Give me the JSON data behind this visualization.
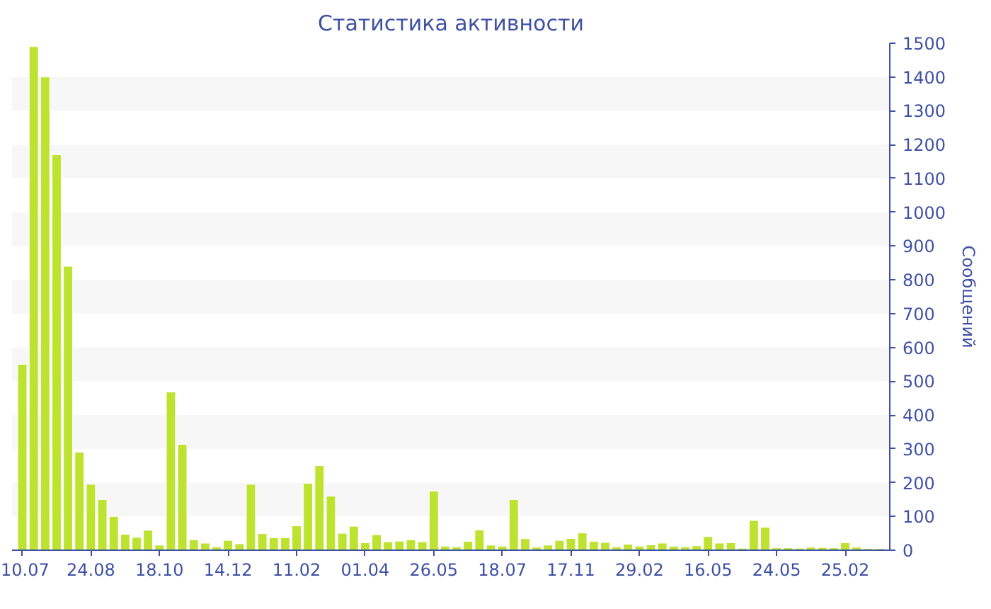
{
  "chart_data": {
    "type": "bar",
    "title": "Статистика активности",
    "ylabel": "Сообщений",
    "categories": [
      "10.07",
      null,
      null,
      null,
      null,
      null,
      "24.08",
      null,
      null,
      null,
      null,
      null,
      "18.10",
      null,
      null,
      null,
      null,
      null,
      "14.12",
      null,
      null,
      null,
      null,
      null,
      "11.02",
      null,
      null,
      null,
      null,
      null,
      "01.04",
      null,
      null,
      null,
      null,
      null,
      "26.05",
      null,
      null,
      null,
      null,
      null,
      "18.07",
      null,
      null,
      null,
      null,
      null,
      "17.11",
      null,
      null,
      null,
      null,
      null,
      "29.02",
      null,
      null,
      null,
      null,
      null,
      "16.05",
      null,
      null,
      null,
      null,
      null,
      "24.05",
      null,
      null,
      null,
      null,
      null,
      "25.02",
      null,
      null,
      null
    ],
    "values": [
      550,
      1490,
      1400,
      1170,
      840,
      290,
      195,
      150,
      100,
      47,
      38,
      59,
      15,
      468,
      313,
      31,
      21,
      10,
      29,
      19,
      195,
      49,
      37,
      37,
      72,
      198,
      250,
      160,
      50,
      71,
      22,
      46,
      25,
      27,
      31,
      25,
      175,
      12,
      10,
      26,
      60,
      15,
      12,
      150,
      34,
      9,
      15,
      29,
      35,
      51,
      26,
      23,
      10,
      18,
      12,
      16,
      21,
      12,
      10,
      13,
      40,
      21,
      22,
      6,
      88,
      68,
      7,
      7,
      6,
      9,
      8,
      7,
      22,
      9,
      5,
      5
    ],
    "color": "#bde22f",
    "ylim": [
      0,
      1500
    ],
    "yticks": [
      0,
      100,
      200,
      300,
      400,
      500,
      600,
      700,
      800,
      900,
      1000,
      1100,
      1200,
      1300,
      1400,
      1500
    ],
    "bands": [
      {
        "axis": "y",
        "from": 100,
        "to": 200,
        "color": "#f7f7f7"
      },
      {
        "axis": "y",
        "from": 300,
        "to": 400,
        "color": "#f7f7f7"
      },
      {
        "axis": "y",
        "from": 500,
        "to": 600,
        "color": "#f7f7f7"
      },
      {
        "axis": "y",
        "from": 700,
        "to": 800,
        "color": "#f7f7f7"
      },
      {
        "axis": "y",
        "from": 900,
        "to": 1000,
        "color": "#f7f7f7"
      },
      {
        "axis": "y",
        "from": 1100,
        "to": 1200,
        "color": "#f7f7f7"
      },
      {
        "axis": "y",
        "from": 1300,
        "to": 1400,
        "color": "#f7f7f7"
      }
    ]
  }
}
